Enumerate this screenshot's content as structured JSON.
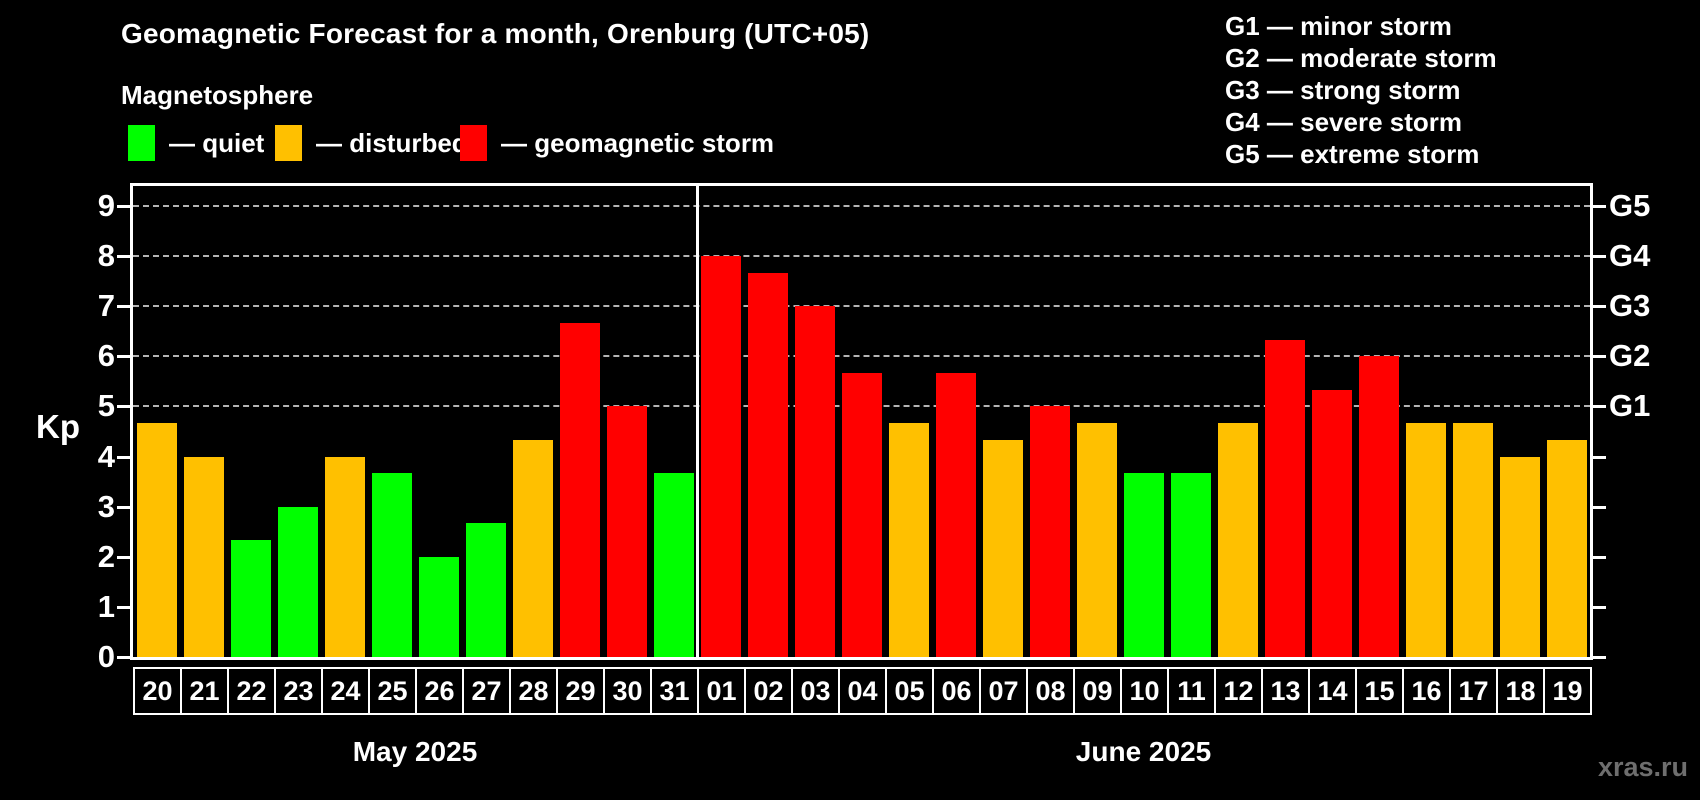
{
  "title": "Geomagnetic Forecast for a month, Orenburg (UTC+05)",
  "subtitle": "Magnetosphere",
  "watermark": "xras.ru",
  "colors": {
    "quiet": "#00ff00",
    "disturbed": "#ffc000",
    "storm": "#ff0000",
    "background": "#000000",
    "axis": "#ffffff",
    "gridline": "#b4b4b4",
    "watermark_text": "#6e6e6e"
  },
  "legend": {
    "items": [
      {
        "key": "quiet",
        "label": "— quiet"
      },
      {
        "key": "disturbed",
        "label": "— disturbed"
      },
      {
        "key": "storm",
        "label": "— geomagnetic storm"
      }
    ]
  },
  "storm_scale_legend": [
    "G1 — minor storm",
    "G2 — moderate storm",
    "G3 — strong storm",
    "G4 — severe storm",
    "G5 — extreme storm"
  ],
  "chart_data": {
    "type": "bar",
    "title": "Geomagnetic Forecast for a month, Orenburg (UTC+05)",
    "ylabel": "Kp",
    "ylim": [
      0,
      9.4
    ],
    "yticks": [
      0,
      1,
      2,
      3,
      4,
      5,
      6,
      7,
      8,
      9
    ],
    "gridlines_at": [
      5,
      6,
      7,
      8,
      9
    ],
    "grid": "dashed, only at storm levels G1-G5",
    "legend_position": "top-left (quiet/disturbed/storm), top-right (G-scale)",
    "right_axis_labels": [
      {
        "label": "G1",
        "value": 5
      },
      {
        "label": "G2",
        "value": 6
      },
      {
        "label": "G3",
        "value": 7
      },
      {
        "label": "G4",
        "value": 8
      },
      {
        "label": "G5",
        "value": 9
      }
    ],
    "months": [
      {
        "label": "May 2025",
        "days": 12
      },
      {
        "label": "June 2025",
        "days": 19
      }
    ],
    "bars": [
      {
        "day": "20",
        "value": 4.67,
        "status": "disturbed"
      },
      {
        "day": "21",
        "value": 4.0,
        "status": "disturbed"
      },
      {
        "day": "22",
        "value": 2.33,
        "status": "quiet"
      },
      {
        "day": "23",
        "value": 3.0,
        "status": "quiet"
      },
      {
        "day": "24",
        "value": 4.0,
        "status": "disturbed"
      },
      {
        "day": "25",
        "value": 3.67,
        "status": "quiet"
      },
      {
        "day": "26",
        "value": 2.0,
        "status": "quiet"
      },
      {
        "day": "27",
        "value": 2.67,
        "status": "quiet"
      },
      {
        "day": "28",
        "value": 4.33,
        "status": "disturbed"
      },
      {
        "day": "29",
        "value": 6.67,
        "status": "storm"
      },
      {
        "day": "30",
        "value": 5.0,
        "status": "storm"
      },
      {
        "day": "31",
        "value": 3.67,
        "status": "quiet"
      },
      {
        "day": "01",
        "value": 8.0,
        "status": "storm"
      },
      {
        "day": "02",
        "value": 7.67,
        "status": "storm"
      },
      {
        "day": "03",
        "value": 7.0,
        "status": "storm"
      },
      {
        "day": "04",
        "value": 5.67,
        "status": "storm"
      },
      {
        "day": "05",
        "value": 4.67,
        "status": "disturbed"
      },
      {
        "day": "06",
        "value": 5.67,
        "status": "storm"
      },
      {
        "day": "07",
        "value": 4.33,
        "status": "disturbed"
      },
      {
        "day": "08",
        "value": 5.0,
        "status": "storm"
      },
      {
        "day": "09",
        "value": 4.67,
        "status": "disturbed"
      },
      {
        "day": "10",
        "value": 3.67,
        "status": "quiet"
      },
      {
        "day": "11",
        "value": 3.67,
        "status": "quiet"
      },
      {
        "day": "12",
        "value": 4.67,
        "status": "disturbed"
      },
      {
        "day": "13",
        "value": 6.33,
        "status": "storm"
      },
      {
        "day": "14",
        "value": 5.33,
        "status": "storm"
      },
      {
        "day": "15",
        "value": 6.0,
        "status": "storm"
      },
      {
        "day": "16",
        "value": 4.67,
        "status": "disturbed"
      },
      {
        "day": "17",
        "value": 4.67,
        "status": "disturbed"
      },
      {
        "day": "18",
        "value": 4.0,
        "status": "disturbed"
      },
      {
        "day": "19",
        "value": 4.33,
        "status": "disturbed"
      }
    ]
  }
}
